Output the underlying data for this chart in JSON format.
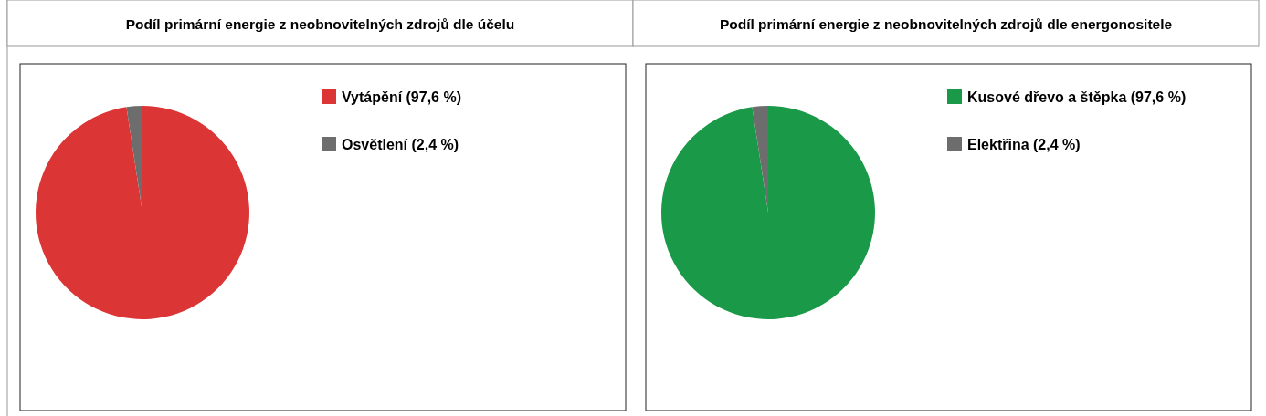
{
  "chart_data": [
    {
      "type": "pie",
      "title": "Podíl primární energie z neobnovitelných zdrojů dle účelu",
      "categories": [
        "Vytápění (97,6 %)",
        "Osvětlení (2,4 %)"
      ],
      "values": [
        97.6,
        2.4
      ],
      "colors": [
        "#dc3535",
        "#6d6d6d"
      ],
      "legend": "top right"
    },
    {
      "type": "pie",
      "title": "Podíl primární energie z neobnovitelných zdrojů dle energonositele",
      "categories": [
        "Kusové dřevo a štěpka (97,6 %)",
        "Elektřina (2,4 %)"
      ],
      "values": [
        97.6,
        2.4
      ],
      "colors": [
        "#1a9948",
        "#6d6d6d"
      ],
      "legend": "top right"
    }
  ]
}
